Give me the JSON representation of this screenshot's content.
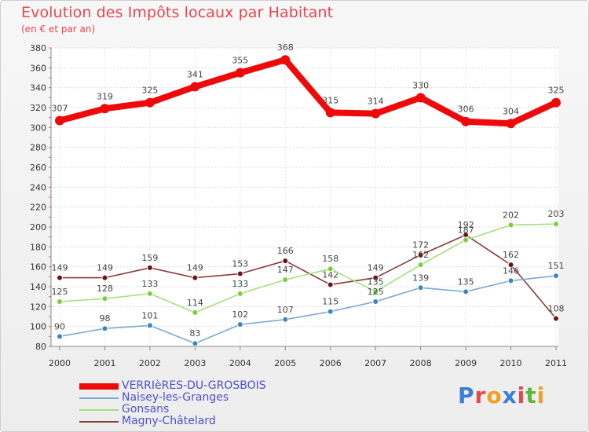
{
  "header": {
    "title": "Evolution des Impôts locaux par Habitant",
    "subtitle": "(en € et par an)"
  },
  "logo": {
    "text": "Proxiti",
    "colors": [
      "#3b7fd4",
      "#e8464e",
      "#f0a020",
      "#3b7fd4",
      "#e8464e",
      "#5db83a",
      "#f0a020"
    ]
  },
  "chart_data": {
    "type": "line",
    "title": "Evolution des Impôts locaux par Habitant",
    "subtitle": "(en € et par an)",
    "xlabel": "",
    "ylabel": "",
    "ylim": [
      80,
      380
    ],
    "y_ticks": [
      80,
      100,
      120,
      140,
      160,
      180,
      200,
      220,
      240,
      260,
      280,
      300,
      320,
      340,
      360,
      380
    ],
    "grid": true,
    "legend_position": "bottom-left",
    "categories": [
      "2000",
      "2001",
      "2002",
      "2003",
      "2004",
      "2005",
      "2006",
      "2007",
      "2008",
      "2009",
      "2010",
      "2011"
    ],
    "series": [
      {
        "name": "VERRIèRES-DU-GROSBOIS",
        "color": "#ee0a0a",
        "marker_color": "#ee0a0a",
        "values": [
          307,
          319,
          325,
          341,
          355,
          368,
          315,
          314,
          330,
          306,
          304,
          325
        ]
      },
      {
        "name": "Naisey-les-Granges",
        "color": "#7aaad4",
        "marker_color": "#3d85c6",
        "values": [
          90,
          98,
          101,
          83,
          102,
          107,
          115,
          125,
          139,
          135,
          146,
          151
        ]
      },
      {
        "name": "Gonsans",
        "color": "#a6e07a",
        "marker_color": "#77cf3a",
        "values": [
          125,
          128,
          133,
          114,
          133,
          147,
          158,
          135,
          162,
          187,
          202,
          203
        ]
      },
      {
        "name": "Magny-Châtelard",
        "color": "#8a3b3b",
        "marker_color": "#6b1616",
        "values": [
          149,
          149,
          159,
          149,
          153,
          166,
          142,
          149,
          172,
          192,
          162,
          108
        ]
      }
    ]
  }
}
